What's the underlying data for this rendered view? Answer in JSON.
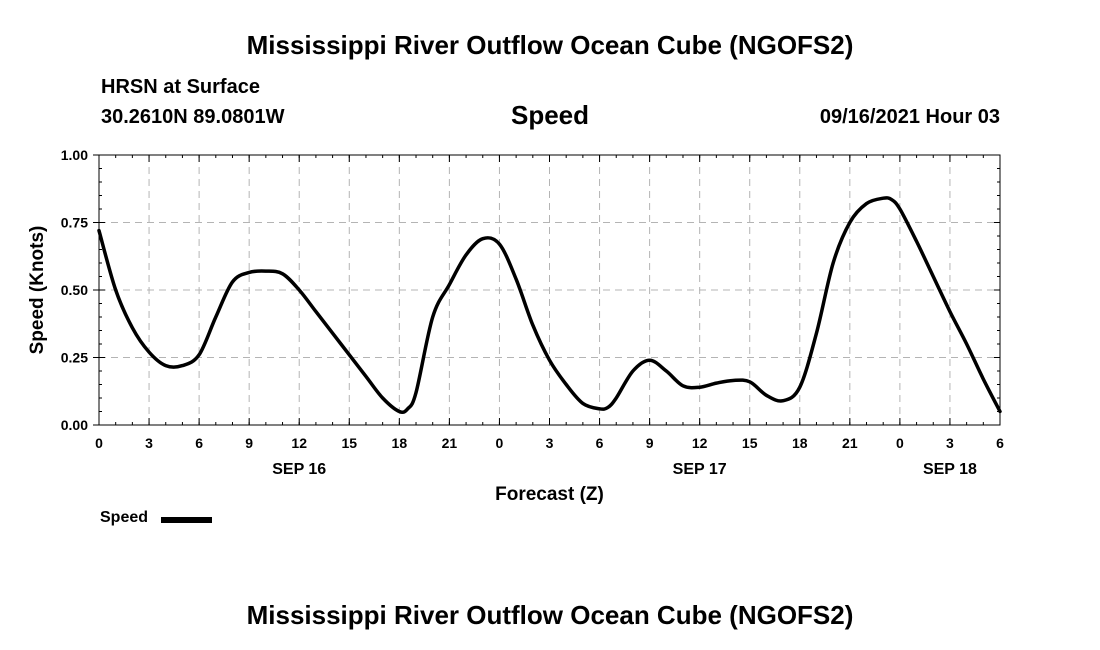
{
  "header": {
    "main_title": "Mississippi River Outflow Ocean Cube (NGOFS2)",
    "station": "HRSN at Surface",
    "coords": "30.2610N  89.0801W",
    "center_title": "Speed",
    "datetime": "09/16/2021 Hour 03"
  },
  "footer": {
    "title": "Mississippi River Outflow Ocean Cube (NGOFS2)"
  },
  "legend": {
    "label": "Speed"
  },
  "chart_data": {
    "type": "line",
    "title": "Speed",
    "xlabel": "Forecast (Z)",
    "ylabel": "Speed (Knots)",
    "x_unit": "hours since 09/16/2021 00Z",
    "xlim": [
      0,
      54
    ],
    "ylim": [
      0,
      1.0
    ],
    "grid": true,
    "legend_position": "bottom-left",
    "x_ticks": [
      0,
      3,
      6,
      9,
      12,
      15,
      18,
      21,
      24,
      27,
      30,
      33,
      36,
      39,
      42,
      45,
      48,
      51,
      54
    ],
    "x_tick_labels": [
      "0",
      "3",
      "6",
      "9",
      "12",
      "15",
      "18",
      "21",
      "0",
      "3",
      "6",
      "9",
      "12",
      "15",
      "18",
      "21",
      "0",
      "3",
      "6"
    ],
    "y_ticks": [
      0,
      0.25,
      0.5,
      0.75,
      1.0
    ],
    "y_tick_labels": [
      "0.00",
      "0.25",
      "0.50",
      "0.75",
      "1.00"
    ],
    "date_labels": [
      {
        "x": 12,
        "label": "SEP 16"
      },
      {
        "x": 36,
        "label": "SEP 17"
      },
      {
        "x": 51,
        "label": "SEP 18"
      }
    ],
    "series": [
      {
        "name": "Speed",
        "color": "#000000",
        "x": [
          0,
          1,
          2,
          3,
          4,
          5,
          6,
          7,
          8,
          9,
          10,
          11,
          12,
          13,
          14,
          15,
          16,
          17,
          18,
          18.5,
          19,
          20,
          21,
          22,
          23,
          24,
          25,
          26,
          27,
          28,
          29,
          30,
          30.5,
          31,
          32,
          33,
          34,
          35,
          36,
          37,
          38,
          39,
          40,
          41,
          42,
          43,
          44,
          45,
          46,
          47,
          47.5,
          48,
          49,
          50,
          51,
          52,
          53,
          54
        ],
        "values": [
          0.72,
          0.5,
          0.36,
          0.27,
          0.22,
          0.22,
          0.26,
          0.4,
          0.53,
          0.565,
          0.57,
          0.56,
          0.5,
          0.42,
          0.34,
          0.26,
          0.18,
          0.1,
          0.05,
          0.06,
          0.12,
          0.4,
          0.52,
          0.63,
          0.69,
          0.67,
          0.54,
          0.37,
          0.24,
          0.15,
          0.08,
          0.06,
          0.065,
          0.1,
          0.2,
          0.24,
          0.2,
          0.145,
          0.14,
          0.155,
          0.165,
          0.16,
          0.11,
          0.09,
          0.14,
          0.34,
          0.6,
          0.75,
          0.82,
          0.84,
          0.835,
          0.8,
          0.68,
          0.55,
          0.42,
          0.3,
          0.17,
          0.05
        ]
      }
    ]
  }
}
